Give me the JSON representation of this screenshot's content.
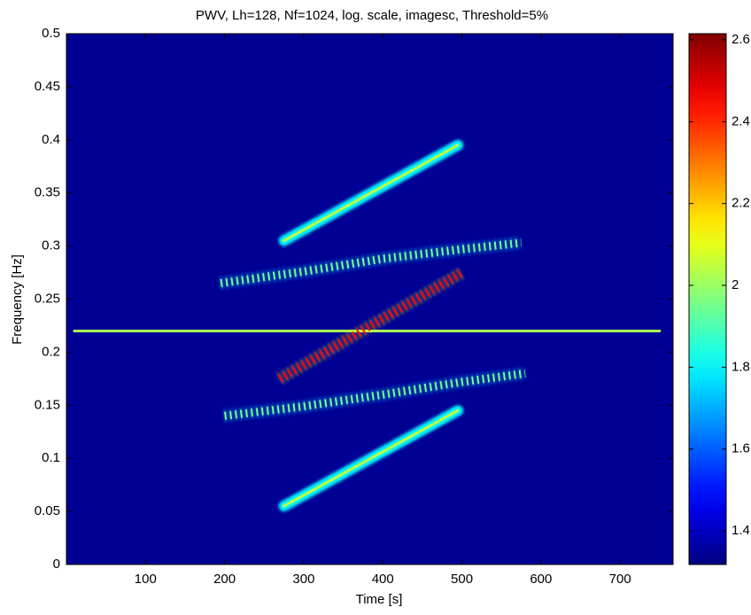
{
  "chart_data": {
    "type": "heatmap",
    "title": "PWV, Lh=128, Nf=1024, log. scale, imagesc, Threshold=5%",
    "x_label": "Time [s]",
    "y_label": "Frequency [Hz]",
    "xlim": [
      0,
      767
    ],
    "ylim": [
      0,
      0.5
    ],
    "xticks": [
      100,
      200,
      300,
      400,
      500,
      600,
      700
    ],
    "yticks": [
      0,
      0.05,
      0.1,
      0.15,
      0.2,
      0.25,
      0.3,
      0.35,
      0.4,
      0.45,
      0.5
    ],
    "colormap": "jet",
    "clim": [
      1.318,
      2.615
    ],
    "cticks": [
      1.4,
      1.6,
      1.8,
      2,
      2.2,
      2.4,
      2.6
    ],
    "ridges": [
      {
        "x": [
          10,
          200,
          400,
          600,
          750
        ],
        "y": [
          0.22,
          0.22,
          0.22,
          0.22,
          0.22
        ],
        "level": 2.02,
        "style": "solid"
      },
      {
        "x": [
          275,
          495
        ],
        "y": [
          0.305,
          0.395
        ],
        "level": 2.05,
        "style": "solid"
      },
      {
        "x": [
          275,
          495
        ],
        "y": [
          0.055,
          0.145
        ],
        "level": 2.05,
        "style": "solid"
      },
      {
        "x": [
          270,
          500
        ],
        "y": [
          0.175,
          0.275
        ],
        "level": 2.45,
        "style": "fringe"
      },
      {
        "x": [
          195,
          300,
          400,
          500,
          575
        ],
        "y": [
          0.265,
          0.276,
          0.288,
          0.297,
          0.303
        ],
        "level": 1.95,
        "style": "fringe"
      },
      {
        "x": [
          200,
          300,
          400,
          500,
          580
        ],
        "y": [
          0.14,
          0.149,
          0.16,
          0.172,
          0.18
        ],
        "level": 1.95,
        "style": "fringe"
      }
    ]
  }
}
